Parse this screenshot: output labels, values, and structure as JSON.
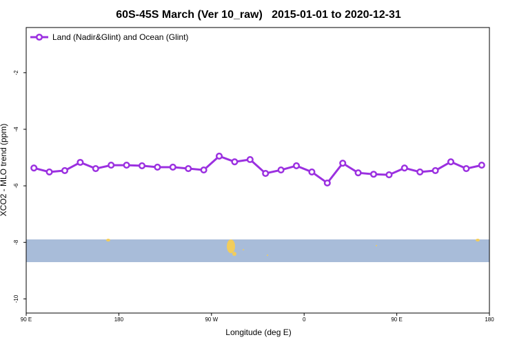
{
  "chart_data": {
    "type": "line",
    "title": "60S-45S March (Ver 10_raw)   2015-01-01 to 2020-12-31",
    "x_label": "Longitude (deg E)",
    "y_label": "XCO2 - MLO trend (ppm)",
    "x": [
      97.5,
      112.5,
      127.5,
      142.5,
      157.5,
      172.5,
      187.5,
      202.5,
      217.5,
      232.5,
      247.5,
      262.5,
      277.5,
      292.5,
      307.5,
      322.5,
      337.5,
      352.5,
      367.5,
      382.5,
      397.5,
      412.5,
      427.5,
      442.5,
      457.5,
      472.5,
      487.5,
      502.5,
      517.5,
      532.5
    ],
    "series": [
      {
        "name": "Land (Nadir&Glint) and Ocean (Glint)",
        "color": "#9b30e0",
        "values": [
          -5.37,
          -5.51,
          -5.46,
          -5.17,
          -5.39,
          -5.27,
          -5.27,
          -5.29,
          -5.34,
          -5.34,
          -5.39,
          -5.44,
          -4.95,
          -5.15,
          -5.07,
          -5.56,
          -5.44,
          -5.29,
          -5.51,
          -5.9,
          -5.2,
          -5.54,
          -5.59,
          -5.61,
          -5.37,
          -5.51,
          -5.46,
          -5.15,
          -5.39,
          -5.27
        ]
      }
    ],
    "xlim": [
      90,
      540
    ],
    "xticks": [
      {
        "value": 90,
        "label": "90 E"
      },
      {
        "value": 180,
        "label": "180"
      },
      {
        "value": 270,
        "label": "90 W"
      },
      {
        "value": 360,
        "label": "0"
      },
      {
        "value": 450,
        "label": "90 E"
      },
      {
        "value": 540,
        "label": "180"
      }
    ],
    "ylim": [
      -10.5,
      -0.4
    ],
    "yticks": [
      -10,
      -8,
      -6,
      -4,
      -2
    ],
    "legend": "top-left"
  }
}
